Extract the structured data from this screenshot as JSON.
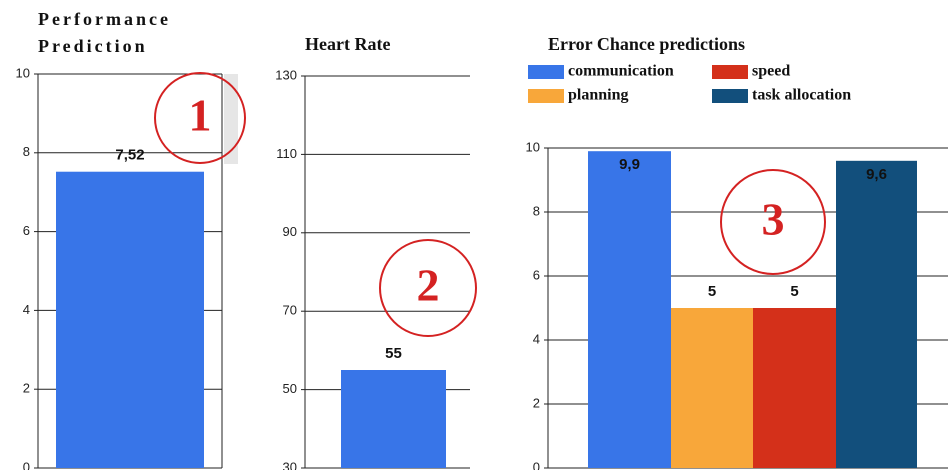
{
  "chart_data": [
    {
      "type": "bar",
      "title": "Performance Prediction",
      "values": [
        7.52
      ],
      "value_labels": [
        "7,52"
      ],
      "color": "#3875e8",
      "ylim": [
        0,
        10
      ],
      "yticks": [
        0,
        2,
        4,
        6,
        8,
        10
      ],
      "grid": true,
      "annotations": [
        "1"
      ]
    },
    {
      "type": "bar",
      "title": "Heart Rate",
      "values": [
        55
      ],
      "value_labels": [
        "55"
      ],
      "color": "#3875e8",
      "ylim": [
        30,
        130
      ],
      "yticks": [
        30,
        50,
        70,
        90,
        110,
        130
      ],
      "grid": true,
      "annotations": [
        "2"
      ]
    },
    {
      "type": "grouped_bar",
      "title": "Error Chance predictions",
      "series": [
        {
          "name": "communication",
          "color": "#3875e8",
          "values": [
            9.9
          ],
          "value_labels": [
            "9,9"
          ]
        },
        {
          "name": "planning",
          "color": "#f8a73a",
          "values": [
            5
          ],
          "value_labels": [
            "5"
          ]
        },
        {
          "name": "speed",
          "color": "#d4301a",
          "values": [
            5
          ],
          "value_labels": [
            "5"
          ]
        },
        {
          "name": "task allocation",
          "color": "#124f7c",
          "values": [
            9.6
          ],
          "value_labels": [
            "9,6"
          ]
        }
      ],
      "ylim": [
        0,
        10
      ],
      "yticks": [
        0,
        2,
        4,
        6,
        8,
        10
      ],
      "grid": true,
      "legend": "top",
      "annotations": [
        "3"
      ]
    }
  ]
}
